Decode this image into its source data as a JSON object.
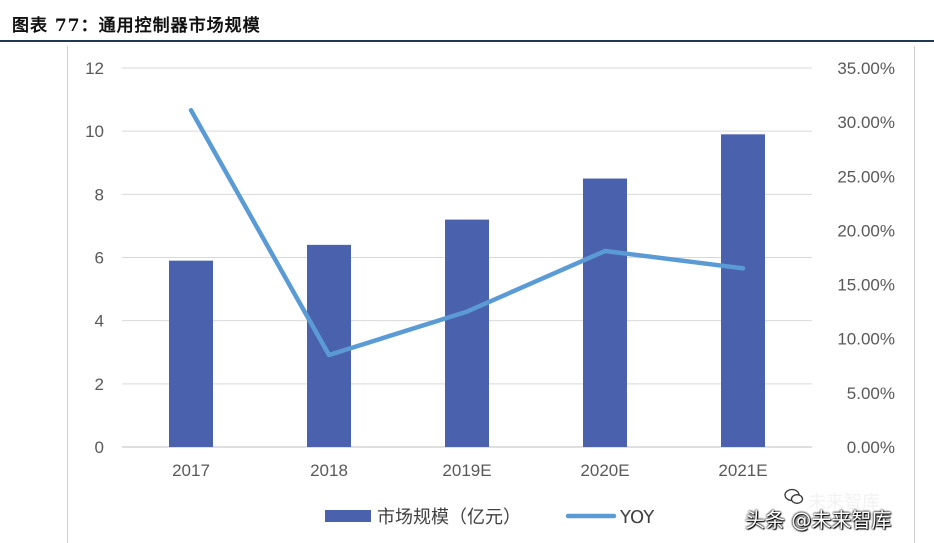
{
  "header": {
    "title": "图表 77：通用控制器市场规模"
  },
  "chart_data": {
    "type": "bar",
    "categories": [
      "2017",
      "2018",
      "2019E",
      "2020E",
      "2021E"
    ],
    "series": [
      {
        "name": "市场规模（亿元）",
        "type": "bar",
        "axis": "left",
        "color": "#4a62ad",
        "values": [
          5.9,
          6.4,
          7.2,
          8.5,
          9.9
        ]
      },
      {
        "name": "YOY",
        "type": "line",
        "axis": "right",
        "color": "#5b9bd5",
        "values": [
          0.311,
          0.085,
          0.125,
          0.181,
          0.165
        ]
      }
    ],
    "y_left": {
      "min": 0,
      "max": 12,
      "ticks": [
        "0",
        "2",
        "4",
        "6",
        "8",
        "10",
        "12"
      ]
    },
    "y_right": {
      "min": 0,
      "max": 0.35,
      "ticks": [
        "0.00%",
        "5.00%",
        "10.00%",
        "15.00%",
        "20.00%",
        "25.00%",
        "30.00%",
        "35.00%"
      ]
    },
    "grid": true,
    "legend": "bottom"
  },
  "watermark": {
    "top": "未来智库",
    "bottom": "头条 @未来智库"
  }
}
